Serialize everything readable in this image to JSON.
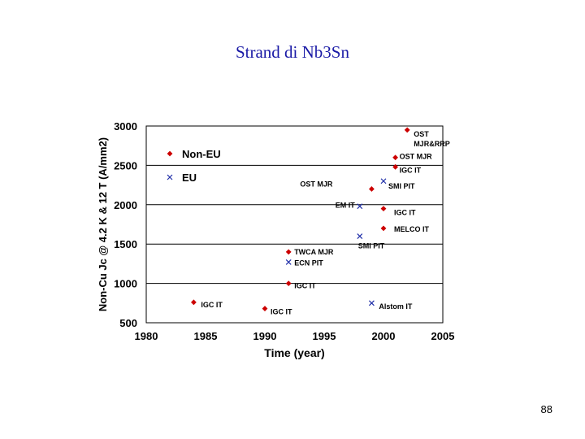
{
  "slide": {
    "title": "Strand di Nb3Sn",
    "page_number": "88"
  },
  "chart_data": {
    "type": "scatter",
    "xlabel": "Time (year)",
    "ylabel": "Non-Cu Jc @ 4.2 K & 12 T (A/mm2)",
    "xlim": [
      1980,
      2005
    ],
    "ylim": [
      500,
      3000
    ],
    "xticks": [
      "1980",
      "1985",
      "1990",
      "1995",
      "2000",
      "2005"
    ],
    "yticks": [
      "500",
      "1000",
      "1500",
      "2000",
      "2500",
      "3000"
    ],
    "grid": "horizontal",
    "legend_position": "top-left inside",
    "colors": {
      "non_eu": "#cc0000",
      "eu": "#1f2ea8"
    },
    "series": [
      {
        "name": "Non-EU",
        "marker": "diamond",
        "points": [
          {
            "x": 1984,
            "y": 760,
            "label": "IGC IT"
          },
          {
            "x": 1990,
            "y": 680,
            "label": "IGC IT"
          },
          {
            "x": 1992,
            "y": 1000,
            "label": "IGC IT"
          },
          {
            "x": 1992,
            "y": 1400,
            "label": "TWCA MJR"
          },
          {
            "x": 1999,
            "y": 2200,
            "label": "OST MJR"
          },
          {
            "x": 2000,
            "y": 1950,
            "label": "IGC IT"
          },
          {
            "x": 2000,
            "y": 1700,
            "label": "MELCO IT"
          },
          {
            "x": 2001,
            "y": 2600,
            "label": "OST MJR"
          },
          {
            "x": 2001,
            "y": 2480,
            "label": "IGC IT"
          },
          {
            "x": 2002,
            "y": 2950,
            "label": "OST MJR&RRP"
          }
        ]
      },
      {
        "name": "EU",
        "marker": "x",
        "points": [
          {
            "x": 1992,
            "y": 1270,
            "label": "ECN PIT"
          },
          {
            "x": 1998,
            "y": 1980,
            "label": "EM IT"
          },
          {
            "x": 1998,
            "y": 1600,
            "label": "SMI PIT"
          },
          {
            "x": 1999,
            "y": 750,
            "label": "Alstom IT"
          },
          {
            "x": 2000,
            "y": 2300,
            "label": "SMI PIT"
          }
        ]
      }
    ]
  }
}
